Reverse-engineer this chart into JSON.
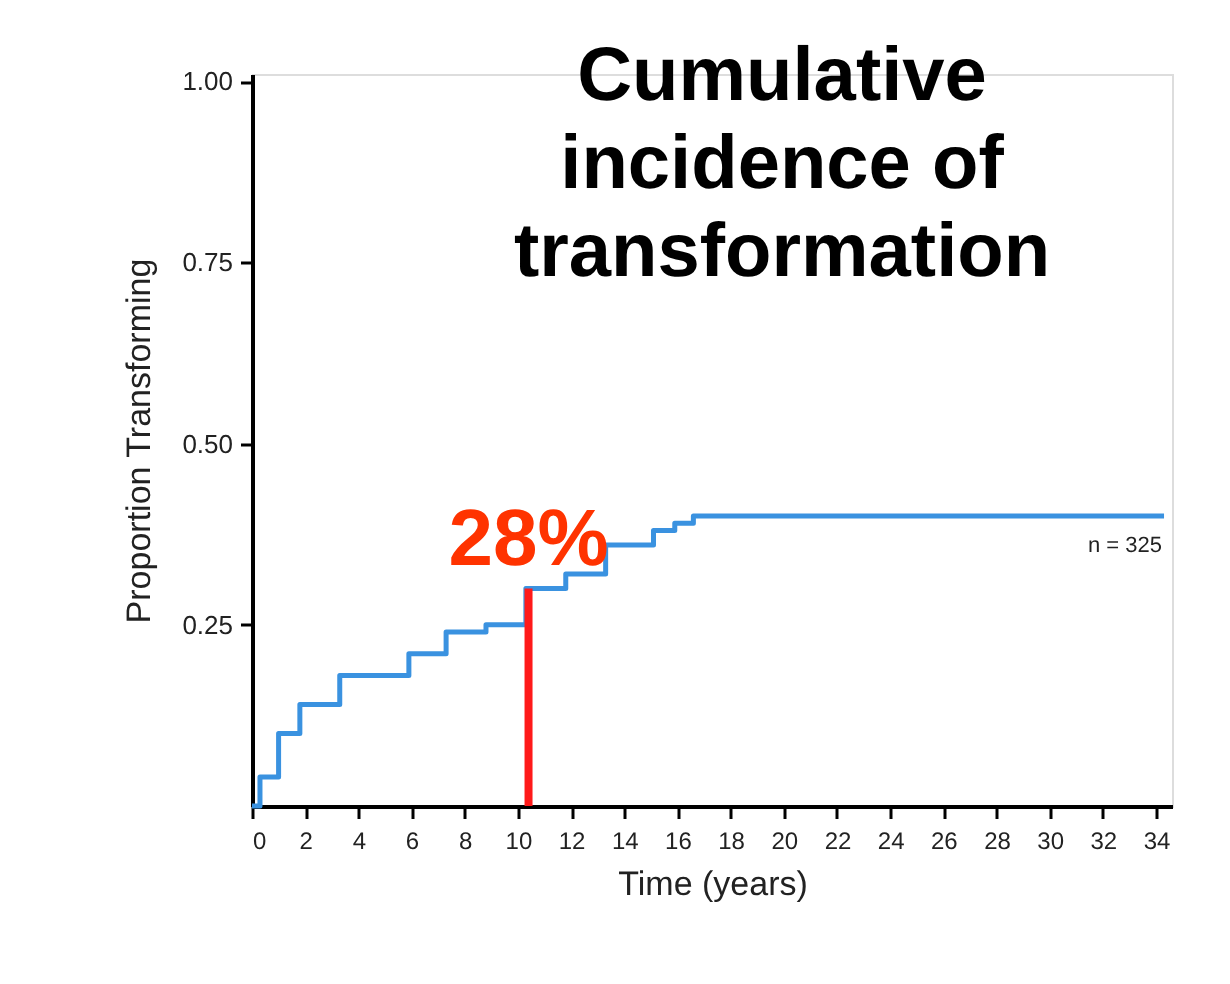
{
  "chart_data": {
    "type": "step",
    "title": "Cumulative incidence of transformation",
    "xlabel": "Time (years)",
    "ylabel": "Proportion Transforming",
    "x": [
      0,
      0.3,
      1.0,
      1.8,
      3.3,
      4.9,
      5.9,
      7.3,
      8.8,
      10.3,
      11.8,
      13.3,
      15.1,
      15.9,
      16.6,
      34.3
    ],
    "series": [
      {
        "color": "#3a92e0",
        "values": [
          0.0,
          0.04,
          0.1,
          0.14,
          0.18,
          0.18,
          0.21,
          0.24,
          0.25,
          0.3,
          0.32,
          0.36,
          0.38,
          0.39,
          0.4,
          0.4
        ]
      }
    ],
    "xlim": [
      0,
      34.6
    ],
    "xticks": [
      0,
      2,
      4,
      6,
      8,
      10,
      12,
      14,
      16,
      18,
      20,
      22,
      24,
      26,
      28,
      30,
      32,
      34
    ],
    "ylim": [
      0,
      1.01
    ],
    "yticks": [
      {
        "value": 0.25,
        "label": "0.25"
      },
      {
        "value": 0.5,
        "label": "0.50"
      },
      {
        "value": 0.75,
        "label": "0.75"
      },
      {
        "value": 1.0,
        "label": "1.00"
      }
    ],
    "ref_lines": [
      {
        "axis": "x",
        "value": 10.4,
        "color": "#ff1a1a"
      }
    ],
    "annotations": [
      {
        "text": "28%",
        "x": 10.4,
        "y": 0.3
      },
      "n = 325"
    ],
    "grid": false
  }
}
